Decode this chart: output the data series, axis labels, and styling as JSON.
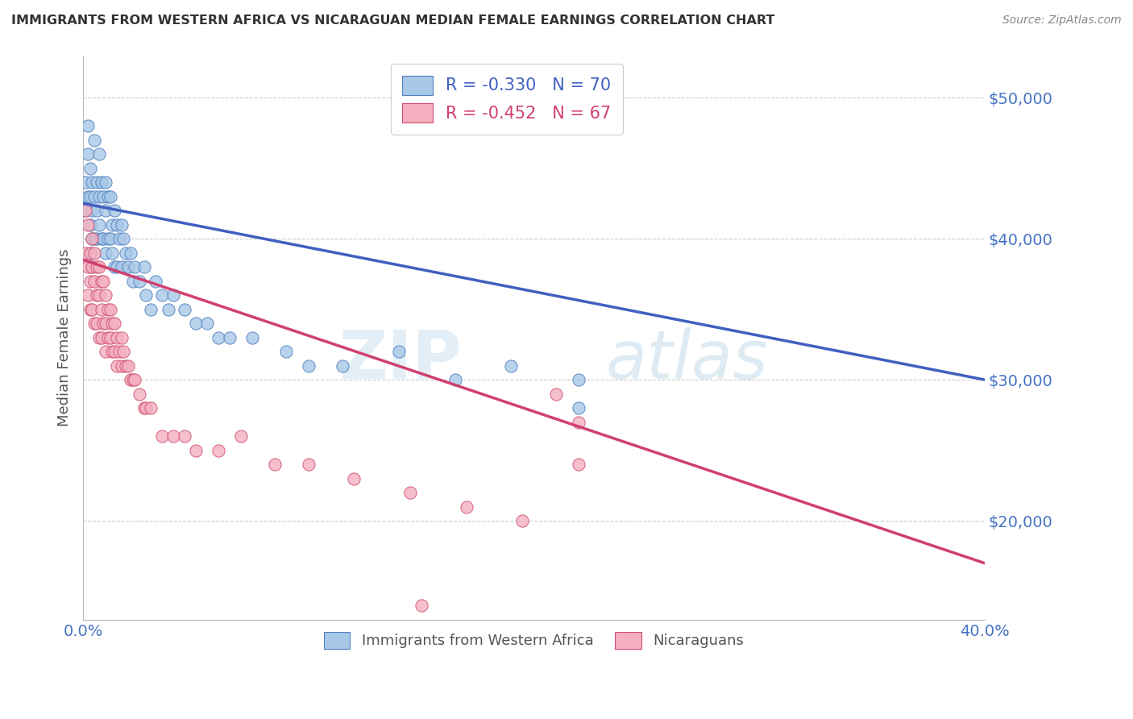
{
  "title": "IMMIGRANTS FROM WESTERN AFRICA VS NICARAGUAN MEDIAN FEMALE EARNINGS CORRELATION CHART",
  "source": "Source: ZipAtlas.com",
  "ylabel": "Median Female Earnings",
  "xlim": [
    0.0,
    0.4
  ],
  "ylim": [
    13000,
    53000
  ],
  "yticks": [
    20000,
    30000,
    40000,
    50000
  ],
  "ytick_labels": [
    "$20,000",
    "$30,000",
    "$40,000",
    "$50,000"
  ],
  "xticks": [
    0.0,
    0.05,
    0.1,
    0.15,
    0.2,
    0.25,
    0.3,
    0.35,
    0.4
  ],
  "xtick_labels": [
    "0.0%",
    "",
    "",
    "",
    "",
    "",
    "",
    "",
    "40.0%"
  ],
  "blue_R": -0.33,
  "blue_N": 70,
  "pink_R": -0.452,
  "pink_N": 67,
  "blue_color": "#a8c8e8",
  "pink_color": "#f4b0c0",
  "blue_edge_color": "#5080c0",
  "pink_edge_color": "#d05070",
  "blue_line_color": "#4060c0",
  "pink_line_color": "#d04070",
  "legend_label_blue": "Immigrants from Western Africa",
  "legend_label_pink": "Nicaraguans",
  "watermark_zip": "ZIP",
  "watermark_atlas": "atlas",
  "background_color": "#ffffff",
  "grid_color": "#cccccc",
  "title_color": "#333333",
  "axis_label_color": "#555555",
  "tick_color": "#4472c4",
  "blue_scatter_x": [
    0.001,
    0.001,
    0.002,
    0.002,
    0.002,
    0.003,
    0.003,
    0.003,
    0.003,
    0.004,
    0.004,
    0.004,
    0.004,
    0.005,
    0.005,
    0.005,
    0.006,
    0.006,
    0.006,
    0.007,
    0.007,
    0.007,
    0.008,
    0.008,
    0.009,
    0.009,
    0.01,
    0.01,
    0.01,
    0.011,
    0.011,
    0.012,
    0.012,
    0.013,
    0.013,
    0.014,
    0.014,
    0.015,
    0.015,
    0.016,
    0.017,
    0.017,
    0.018,
    0.019,
    0.02,
    0.021,
    0.022,
    0.023,
    0.025,
    0.027,
    0.028,
    0.03,
    0.032,
    0.035,
    0.038,
    0.04,
    0.045,
    0.05,
    0.055,
    0.06,
    0.065,
    0.075,
    0.09,
    0.1,
    0.115,
    0.14,
    0.165,
    0.19,
    0.22,
    0.22
  ],
  "blue_scatter_y": [
    42000,
    44000,
    48000,
    46000,
    43000,
    45000,
    43000,
    41000,
    39000,
    44000,
    42000,
    40000,
    38000,
    47000,
    43000,
    40000,
    44000,
    42000,
    40000,
    46000,
    43000,
    41000,
    44000,
    40000,
    43000,
    40000,
    44000,
    42000,
    39000,
    43000,
    40000,
    43000,
    40000,
    41000,
    39000,
    42000,
    38000,
    41000,
    38000,
    40000,
    41000,
    38000,
    40000,
    39000,
    38000,
    39000,
    37000,
    38000,
    37000,
    38000,
    36000,
    35000,
    37000,
    36000,
    35000,
    36000,
    35000,
    34000,
    34000,
    33000,
    33000,
    33000,
    32000,
    31000,
    31000,
    32000,
    30000,
    31000,
    30000,
    28000
  ],
  "pink_scatter_x": [
    0.001,
    0.001,
    0.002,
    0.002,
    0.002,
    0.003,
    0.003,
    0.003,
    0.004,
    0.004,
    0.004,
    0.005,
    0.005,
    0.005,
    0.006,
    0.006,
    0.006,
    0.007,
    0.007,
    0.007,
    0.008,
    0.008,
    0.008,
    0.009,
    0.009,
    0.01,
    0.01,
    0.01,
    0.011,
    0.011,
    0.012,
    0.012,
    0.013,
    0.013,
    0.014,
    0.014,
    0.015,
    0.015,
    0.016,
    0.017,
    0.017,
    0.018,
    0.019,
    0.02,
    0.021,
    0.022,
    0.023,
    0.025,
    0.027,
    0.028,
    0.03,
    0.035,
    0.04,
    0.045,
    0.05,
    0.06,
    0.07,
    0.085,
    0.1,
    0.12,
    0.145,
    0.17,
    0.195,
    0.21,
    0.22,
    0.22,
    0.15
  ],
  "pink_scatter_y": [
    42000,
    39000,
    41000,
    38000,
    36000,
    39000,
    37000,
    35000,
    40000,
    38000,
    35000,
    39000,
    37000,
    34000,
    38000,
    36000,
    34000,
    38000,
    36000,
    33000,
    37000,
    35000,
    33000,
    37000,
    34000,
    36000,
    34000,
    32000,
    35000,
    33000,
    35000,
    33000,
    34000,
    32000,
    34000,
    32000,
    33000,
    31000,
    32000,
    33000,
    31000,
    32000,
    31000,
    31000,
    30000,
    30000,
    30000,
    29000,
    28000,
    28000,
    28000,
    26000,
    26000,
    26000,
    25000,
    25000,
    26000,
    24000,
    24000,
    23000,
    22000,
    21000,
    20000,
    29000,
    27000,
    24000,
    14000
  ],
  "blue_trendline_x0": 0.0,
  "blue_trendline_y0": 42500,
  "blue_trendline_x1": 0.4,
  "blue_trendline_y1": 30000,
  "pink_trendline_x0": 0.0,
  "pink_trendline_y0": 38500,
  "pink_trendline_x1": 0.4,
  "pink_trendline_y1": 17000
}
